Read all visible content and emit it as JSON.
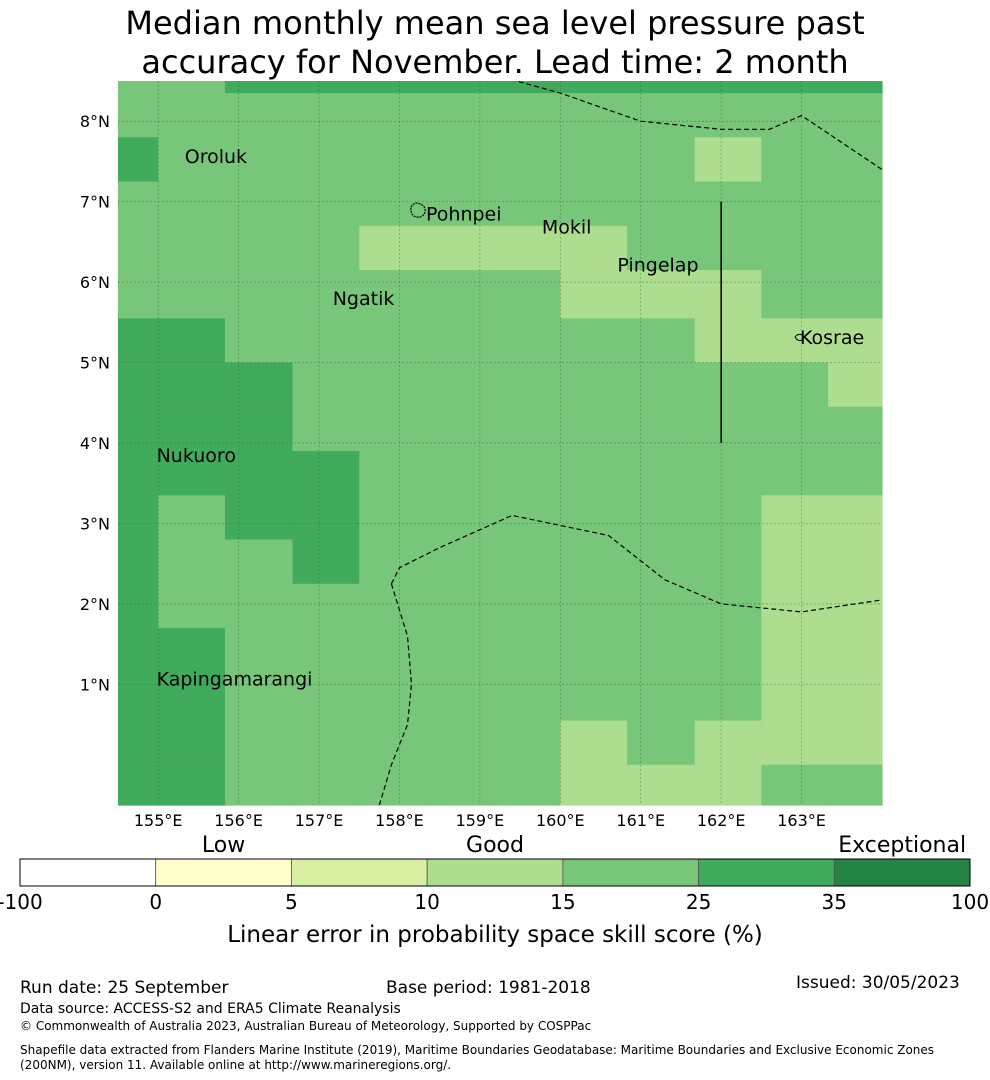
{
  "title": {
    "line1": "Median monthly mean sea level pressure past",
    "line2": "accuracy for November. Lead time: 2 month"
  },
  "map": {
    "lon_range": [
      154.5,
      164.0
    ],
    "lat_range": [
      -0.5,
      8.5
    ],
    "lat_ticks": [
      {
        "value": 8,
        "label": "8°N"
      },
      {
        "value": 7,
        "label": "7°N"
      },
      {
        "value": 6,
        "label": "6°N"
      },
      {
        "value": 5,
        "label": "5°N"
      },
      {
        "value": 4,
        "label": "4°N"
      },
      {
        "value": 3,
        "label": "3°N"
      },
      {
        "value": 2,
        "label": "2°N"
      },
      {
        "value": 1,
        "label": "1°N"
      }
    ],
    "lon_ticks": [
      {
        "value": 155,
        "label": "155°E"
      },
      {
        "value": 156,
        "label": "156°E"
      },
      {
        "value": 157,
        "label": "157°E"
      },
      {
        "value": 158,
        "label": "158°E"
      },
      {
        "value": 159,
        "label": "159°E"
      },
      {
        "value": 160,
        "label": "160°E"
      },
      {
        "value": 161,
        "label": "161°E"
      },
      {
        "value": 162,
        "label": "162°E"
      },
      {
        "value": 163,
        "label": "163°E"
      }
    ],
    "grid": {
      "lon_edges": [
        154.5,
        155.0,
        155.83,
        156.67,
        157.5,
        158.33,
        159.17,
        160.0,
        160.83,
        161.67,
        162.5,
        163.33,
        164.0
      ],
      "lat_edges": [
        8.5,
        8.35,
        7.8,
        7.25,
        6.7,
        6.15,
        5.55,
        5.0,
        4.45,
        3.9,
        3.35,
        2.8,
        2.25,
        1.7,
        1.15,
        0.55,
        0.0,
        -0.5
      ],
      "rows": [
        [
          "good",
          "good",
          "strong",
          "strong",
          "strong",
          "strong",
          "strong",
          "strong",
          "strong",
          "strong",
          "strong",
          "strong"
        ],
        [
          "good",
          "good",
          "good",
          "good",
          "good",
          "good",
          "good",
          "good",
          "good",
          "good",
          "good",
          "good"
        ],
        [
          "strong",
          "good",
          "good",
          "good",
          "good",
          "good",
          "good",
          "good",
          "good",
          "fair",
          "good",
          "good"
        ],
        [
          "good",
          "good",
          "good",
          "good",
          "good",
          "good",
          "good",
          "good",
          "good",
          "good",
          "good",
          "good"
        ],
        [
          "good",
          "good",
          "good",
          "good",
          "fair",
          "fair",
          "fair",
          "fair",
          "good",
          "good",
          "good",
          "good"
        ],
        [
          "good",
          "good",
          "good",
          "good",
          "good",
          "good",
          "good",
          "fair",
          "fair",
          "fair",
          "good",
          "good"
        ],
        [
          "strong",
          "strong",
          "good",
          "good",
          "good",
          "good",
          "good",
          "good",
          "good",
          "fair",
          "fair",
          "fair"
        ],
        [
          "strong",
          "strong",
          "strong",
          "good",
          "good",
          "good",
          "good",
          "good",
          "good",
          "good",
          "good",
          "fair"
        ],
        [
          "strong",
          "strong",
          "strong",
          "good",
          "good",
          "good",
          "good",
          "good",
          "good",
          "good",
          "good",
          "good"
        ],
        [
          "strong",
          "strong",
          "strong",
          "strong",
          "good",
          "good",
          "good",
          "good",
          "good",
          "good",
          "good",
          "good"
        ],
        [
          "strong",
          "good",
          "strong",
          "strong",
          "good",
          "good",
          "good",
          "good",
          "good",
          "good",
          "fair",
          "fair"
        ],
        [
          "strong",
          "good",
          "good",
          "strong",
          "good",
          "good",
          "good",
          "good",
          "good",
          "good",
          "fair",
          "fair"
        ],
        [
          "strong",
          "good",
          "good",
          "good",
          "good",
          "good",
          "good",
          "good",
          "good",
          "good",
          "fair",
          "fair"
        ],
        [
          "strong",
          "strong",
          "good",
          "good",
          "good",
          "good",
          "good",
          "good",
          "good",
          "good",
          "fair",
          "fair"
        ],
        [
          "strong",
          "strong",
          "good",
          "good",
          "good",
          "good",
          "good",
          "good",
          "good",
          "good",
          "fair",
          "fair"
        ],
        [
          "strong",
          "strong",
          "good",
          "good",
          "good",
          "good",
          "good",
          "fair",
          "good",
          "fair",
          "fair",
          "fair"
        ],
        [
          "strong",
          "strong",
          "good",
          "good",
          "good",
          "good",
          "good",
          "fair",
          "fair",
          "fair",
          "good",
          "good"
        ]
      ]
    },
    "places": [
      {
        "name": "Oroluk",
        "lon": 155.33,
        "lat": 7.57
      },
      {
        "name": "Pohnpei",
        "lon": 158.33,
        "lat": 6.85
      },
      {
        "name": "Mokil",
        "lon": 159.77,
        "lat": 6.69
      },
      {
        "name": "Pingelap",
        "lon": 160.71,
        "lat": 6.22
      },
      {
        "name": "Ngatik",
        "lon": 157.17,
        "lat": 5.8
      },
      {
        "name": "Kosrae",
        "lon": 162.98,
        "lat": 5.32
      },
      {
        "name": "Nukuoro",
        "lon": 154.98,
        "lat": 3.85
      },
      {
        "name": "Kapingamarangi",
        "lon": 154.98,
        "lat": 1.07
      }
    ],
    "boundaries": [
      [
        [
          159.1,
          8.6
        ],
        [
          160.0,
          8.35
        ],
        [
          161.0,
          8.0
        ],
        [
          162.0,
          7.9
        ],
        [
          162.6,
          7.9
        ],
        [
          163.0,
          8.07
        ],
        [
          164.0,
          7.4
        ]
      ],
      [
        [
          157.9,
          2.25
        ],
        [
          158.0,
          2.45
        ],
        [
          158.5,
          2.7
        ],
        [
          159.4,
          3.1
        ],
        [
          160.6,
          2.85
        ],
        [
          161.3,
          2.3
        ],
        [
          162.0,
          2.0
        ],
        [
          163.0,
          1.9
        ],
        [
          164.0,
          2.05
        ]
      ],
      [
        [
          157.9,
          2.25
        ],
        [
          158.1,
          1.6
        ],
        [
          158.15,
          1.0
        ],
        [
          158.1,
          0.5
        ],
        [
          157.9,
          0.0
        ],
        [
          157.75,
          -0.5
        ]
      ]
    ],
    "meridian_line": {
      "lon": 162.0,
      "lat_from": 7.0,
      "lat_to": 4.0
    }
  },
  "legend": {
    "category_labels": [
      "Low",
      "Good",
      "Exceptional"
    ],
    "tick_labels": [
      "-100",
      "0",
      "5",
      "10",
      "15",
      "25",
      "35",
      "100"
    ],
    "colors": [
      "#ffffff",
      "#ffffcc",
      "#d9f0a3",
      "#addd8e",
      "#78c679",
      "#41ab5d",
      "#238443"
    ],
    "axis_label": "Linear error in probability space skill score (%)"
  },
  "palette": {
    "fair": "#addd8e",
    "good": "#78c679",
    "strong": "#41ab5d"
  },
  "footer": {
    "run_date": "Run date: 25 September",
    "base_period": "Base period: 1981-2018",
    "issued": "Issued: 30/05/2023",
    "data_source": "Data source: ACCESS-S2 and ERA5 Climate Reanalysis",
    "copyright": "© Commonwealth of Australia 2023, Australian Bureau of Meteorology, Supported by COSPPac",
    "shapefile_line1": "Shapefile data extracted from Flanders Marine Institute (2019), Maritime Boundaries Geodatabase: Maritime Boundaries and Exclusive Economic Zones",
    "shapefile_line2": "(200NM), version 11. Available online at http://www.marineregions.org/."
  }
}
